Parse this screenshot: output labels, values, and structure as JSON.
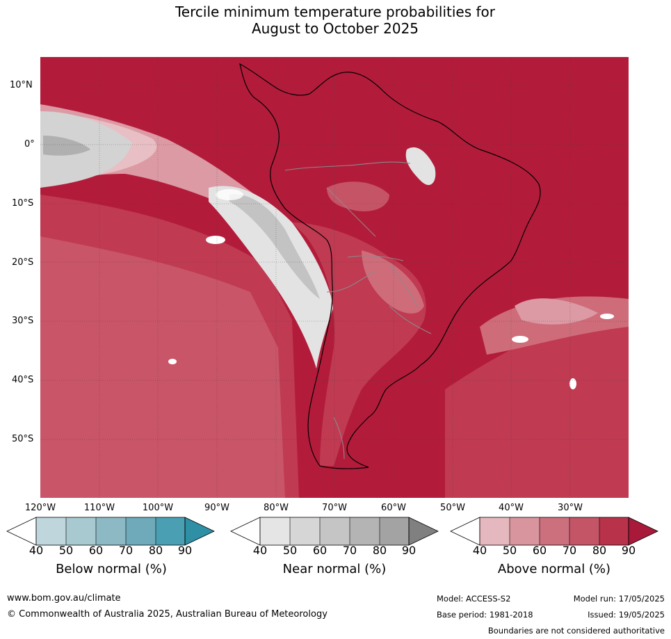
{
  "title_line1": "Tercile minimum temperature probabilities for",
  "title_line2": "August to October 2025",
  "map": {
    "lat_labels": [
      "10°N",
      "0°",
      "10°S",
      "20°S",
      "30°S",
      "40°S",
      "50°S"
    ],
    "lon_labels": [
      "120°W",
      "110°W",
      "100°W",
      "90°W",
      "80°W",
      "70°W",
      "60°W",
      "50°W",
      "40°W",
      "30°W"
    ],
    "colors": {
      "above_90": "#b21c3a",
      "above_80": "#c03a52",
      "above_70": "#cf6c7a",
      "above_60": "#dc9aa4",
      "above_50": "#e7bfc4",
      "near_50": "#e3e3e3",
      "near_60": "#d3d3d3",
      "near_70": "#c3c3c3",
      "near_80": "#b0b0b0"
    }
  },
  "legend": {
    "below": {
      "title": "Below normal (%)",
      "ticks": [
        "40",
        "50",
        "60",
        "70",
        "80",
        "90"
      ],
      "colors": [
        "#bed6dc",
        "#a8c9d0",
        "#8db9c4",
        "#6eaab9",
        "#4a9fb3",
        "#2e8fa5"
      ]
    },
    "near": {
      "title": "Near normal (%)",
      "ticks": [
        "40",
        "50",
        "60",
        "70",
        "80",
        "90"
      ],
      "colors": [
        "#e5e5e5",
        "#d6d6d6",
        "#c5c5c5",
        "#b4b4b4",
        "#a3a3a3",
        "#808080"
      ]
    },
    "above": {
      "title": "Above normal (%)",
      "ticks": [
        "40",
        "50",
        "60",
        "70",
        "80",
        "90"
      ],
      "colors": [
        "#e4b8be",
        "#d8959e",
        "#cc707d",
        "#c35566",
        "#b8334a",
        "#a9193a"
      ]
    }
  },
  "footer": {
    "website": "www.bom.gov.au/climate",
    "copyright": "© Commonwealth of Australia 2025, Australian Bureau of Meteorology",
    "model": "Model: ACCESS-S2",
    "model_run": "Model run: 17/05/2025",
    "base_period": "Base period: 1981-2018",
    "issued": "Issued: 19/05/2025",
    "disclaimer": "Boundaries are not considered authoritative"
  }
}
